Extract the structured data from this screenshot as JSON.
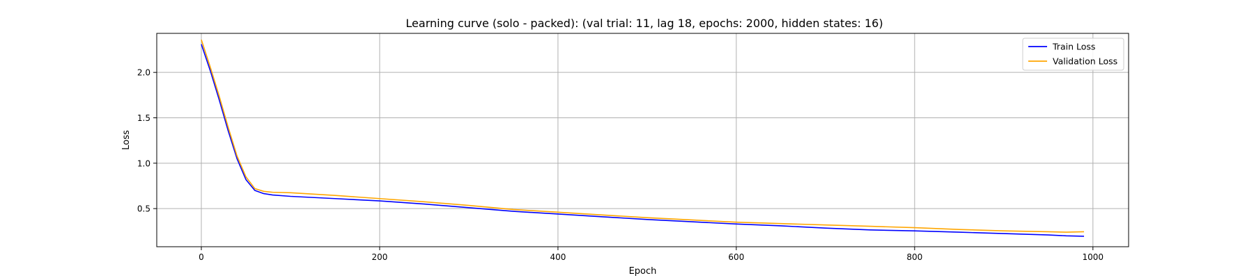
{
  "chart_data": {
    "type": "line",
    "title": "Learning curve (solo - packed): (val trial: 11, lag 18, epochs: 2000, hidden states: 16)",
    "xlabel": "Epoch",
    "ylabel": "Loss",
    "xlim": [
      -50,
      1040
    ],
    "ylim": [
      0.08,
      2.43
    ],
    "xticks": [
      0,
      200,
      400,
      600,
      800,
      1000
    ],
    "xtick_labels": [
      "0",
      "200",
      "400",
      "600",
      "800",
      "1000"
    ],
    "yticks": [
      0.5,
      1.0,
      1.5,
      2.0
    ],
    "ytick_labels": [
      "0.5",
      "1.0",
      "1.5",
      "2.0"
    ],
    "grid": true,
    "legend_position": "top-right",
    "series": [
      {
        "name": "Train Loss",
        "color": "#0000ff",
        "x": [
          0,
          10,
          20,
          30,
          40,
          50,
          60,
          70,
          80,
          100,
          150,
          200,
          250,
          300,
          350,
          400,
          450,
          500,
          550,
          600,
          650,
          700,
          750,
          800,
          850,
          900,
          950,
          970,
          990
        ],
        "y": [
          2.31,
          2.02,
          1.7,
          1.36,
          1.05,
          0.82,
          0.7,
          0.665,
          0.65,
          0.635,
          0.61,
          0.585,
          0.55,
          0.51,
          0.47,
          0.44,
          0.41,
          0.38,
          0.355,
          0.33,
          0.31,
          0.285,
          0.265,
          0.255,
          0.24,
          0.225,
          0.21,
          0.2,
          0.195
        ]
      },
      {
        "name": "Validation Loss",
        "color": "#ffa500",
        "x": [
          0,
          10,
          20,
          30,
          40,
          50,
          60,
          70,
          80,
          100,
          150,
          200,
          250,
          300,
          350,
          400,
          450,
          500,
          550,
          600,
          650,
          700,
          750,
          800,
          850,
          900,
          950,
          970,
          990
        ],
        "y": [
          2.36,
          2.06,
          1.74,
          1.4,
          1.08,
          0.85,
          0.72,
          0.69,
          0.68,
          0.675,
          0.645,
          0.61,
          0.575,
          0.535,
          0.49,
          0.46,
          0.43,
          0.4,
          0.375,
          0.35,
          0.335,
          0.32,
          0.305,
          0.29,
          0.27,
          0.255,
          0.245,
          0.24,
          0.245
        ]
      }
    ]
  }
}
